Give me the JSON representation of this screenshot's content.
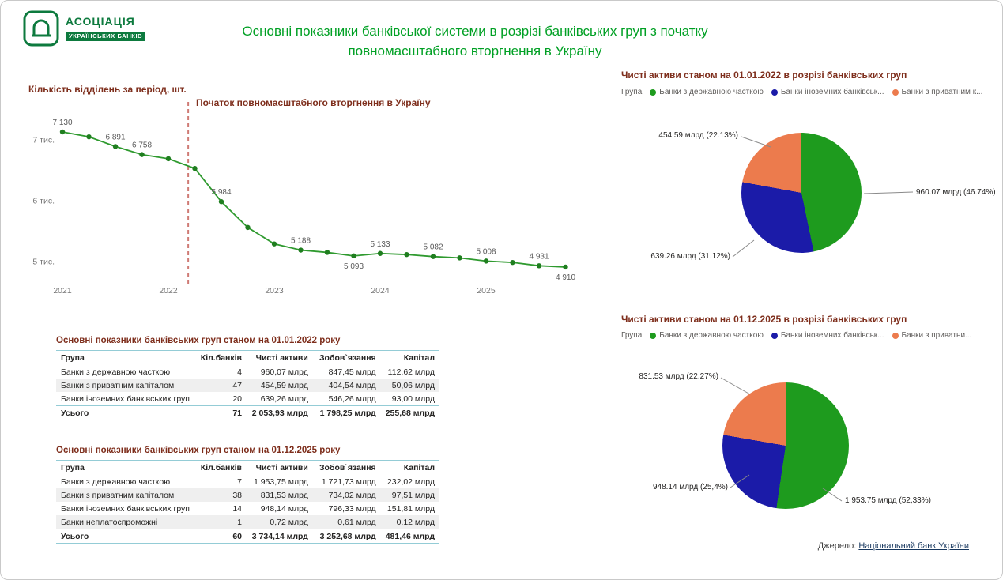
{
  "page": {
    "title_line1": "Основні показники банківської системи в розрізі банківських груп з початку",
    "title_line2": "повномасштабного вторгнення в Україну",
    "source_prefix": "Джерело:",
    "source_link": "Національний банк України"
  },
  "logo": {
    "line1": "АСОЦІАЦІЯ",
    "line2": "УКРАЇНСЬКИХ БАНКІВ"
  },
  "colors": {
    "green": "#1e9b1e",
    "blue": "#1b1ba8",
    "orange": "#ec7b4d",
    "line_green": "#2f9a2f",
    "dot_green": "#1f7e1f",
    "title_green": "#00a024",
    "maroon": "#7e2e1c",
    "event_red": "#cf7b75",
    "axis_gray": "#757575",
    "table_line_teal": "#94ccd6"
  },
  "chart_data": [
    {
      "type": "line",
      "title": "Кількість відділень за період, шт.",
      "annotation": "Початок повномасштабного вторгнення в Україну",
      "x_ticks": [
        {
          "label": "2021",
          "index": 0
        },
        {
          "label": "2022",
          "index": 4
        },
        {
          "label": "2023",
          "index": 8
        },
        {
          "label": "2024",
          "index": 12
        },
        {
          "label": "2025",
          "index": 16
        }
      ],
      "y_ticks": [
        {
          "label": "7 тис.",
          "value": 7000
        },
        {
          "label": "6 тис.",
          "value": 6000
        },
        {
          "label": "5 тис.",
          "value": 5000
        }
      ],
      "values": [
        7130,
        7050,
        6891,
        6758,
        6690,
        6530,
        5984,
        5560,
        5290,
        5188,
        5150,
        5093,
        5133,
        5115,
        5082,
        5060,
        5008,
        4985,
        4931,
        4910
      ],
      "point_labels": [
        {
          "index": 0,
          "text": "7 130",
          "pos": "above"
        },
        {
          "index": 2,
          "text": "6 891",
          "pos": "above"
        },
        {
          "index": 3,
          "text": "6 758",
          "pos": "above"
        },
        {
          "index": 6,
          "text": "5 984",
          "pos": "above"
        },
        {
          "index": 9,
          "text": "5 188",
          "pos": "above"
        },
        {
          "index": 11,
          "text": "5 093",
          "pos": "below"
        },
        {
          "index": 12,
          "text": "5 133",
          "pos": "above"
        },
        {
          "index": 14,
          "text": "5 082",
          "pos": "above"
        },
        {
          "index": 16,
          "text": "5 008",
          "pos": "above"
        },
        {
          "index": 18,
          "text": "4 931",
          "pos": "above"
        },
        {
          "index": 19,
          "text": "4 910",
          "pos": "below"
        }
      ],
      "event_line_position": 4.75,
      "y_range": [
        4800,
        7300
      ]
    },
    {
      "type": "pie",
      "title": "Чисті активи станом на 01.01.2022 в розрізі банківських груп",
      "legend_title": "Група",
      "legend": [
        {
          "label": "Банки з державною часткою",
          "color": "green"
        },
        {
          "label": "Банки іноземних банківськ...",
          "color": "blue"
        },
        {
          "label": "Банки з приватним к...",
          "color": "orange"
        }
      ],
      "slices": [
        {
          "name": "Банки з державною часткою",
          "value": 46.74,
          "color": "green",
          "label": "960.07 млрд (46.74%)"
        },
        {
          "name": "Банки іноземних банківських груп",
          "value": 31.12,
          "color": "blue",
          "label": "639.26 млрд (31.12%)"
        },
        {
          "name": "Банки з приватним капіталом",
          "value": 22.13,
          "color": "orange",
          "label": "454.59 млрд (22.13%)"
        }
      ]
    },
    {
      "type": "pie",
      "title": "Чисті активи станом на 01.12.2025 в розрізі банківських груп",
      "legend_title": "Група",
      "legend": [
        {
          "label": "Банки з державною часткою",
          "color": "green"
        },
        {
          "label": "Банки іноземних банківськ...",
          "color": "blue"
        },
        {
          "label": "Банки з приватни...",
          "color": "orange"
        }
      ],
      "slices": [
        {
          "name": "Банки з державною часткою",
          "value": 52.33,
          "color": "green",
          "label": "1 953.75 млрд (52,33%)"
        },
        {
          "name": "Банки іноземних банківських груп",
          "value": 25.4,
          "color": "blue",
          "label": "948.14 млрд (25,4%)"
        },
        {
          "name": "Банки з приватним капіталом",
          "value": 22.27,
          "color": "orange",
          "label": "831.53 млрд (22.27%)"
        }
      ]
    }
  ],
  "tables": [
    {
      "title": "Основні показники банківських груп станом на 01.01.2022 року",
      "columns": [
        "Група",
        "Кіл.банків",
        "Чисті активи",
        "Зобов`язання",
        "Капітал"
      ],
      "rows": [
        [
          "Банки з державною часткою",
          "4",
          "960,07 млрд",
          "847,45 млрд",
          "112,62 млрд"
        ],
        [
          "Банки з приватним капіталом",
          "47",
          "454,59 млрд",
          "404,54 млрд",
          "50,06 млрд"
        ],
        [
          "Банки іноземних банківських груп",
          "20",
          "639,26 млрд",
          "546,26 млрд",
          "93,00 млрд"
        ]
      ],
      "total": [
        "Усього",
        "71",
        "2 053,93 млрд",
        "1 798,25 млрд",
        "255,68 млрд"
      ]
    },
    {
      "title": "Основні показники банківських груп станом на 01.12.2025 року",
      "columns": [
        "Група",
        "Кіл.банків",
        "Чисті активи",
        "Зобов`язання",
        "Капітал"
      ],
      "rows": [
        [
          "Банки з державною часткою",
          "7",
          "1 953,75 млрд",
          "1 721,73 млрд",
          "232,02 млрд"
        ],
        [
          "Банки з приватним капіталом",
          "38",
          "831,53 млрд",
          "734,02 млрд",
          "97,51 млрд"
        ],
        [
          "Банки іноземних банківських груп",
          "14",
          "948,14 млрд",
          "796,33 млрд",
          "151,81 млрд"
        ],
        [
          "Банки неплатоспроможні",
          "1",
          "0,72 млрд",
          "0,61 млрд",
          "0,12 млрд"
        ]
      ],
      "total": [
        "Усього",
        "60",
        "3 734,14 млрд",
        "3 252,68 млрд",
        "481,46 млрд"
      ]
    }
  ]
}
